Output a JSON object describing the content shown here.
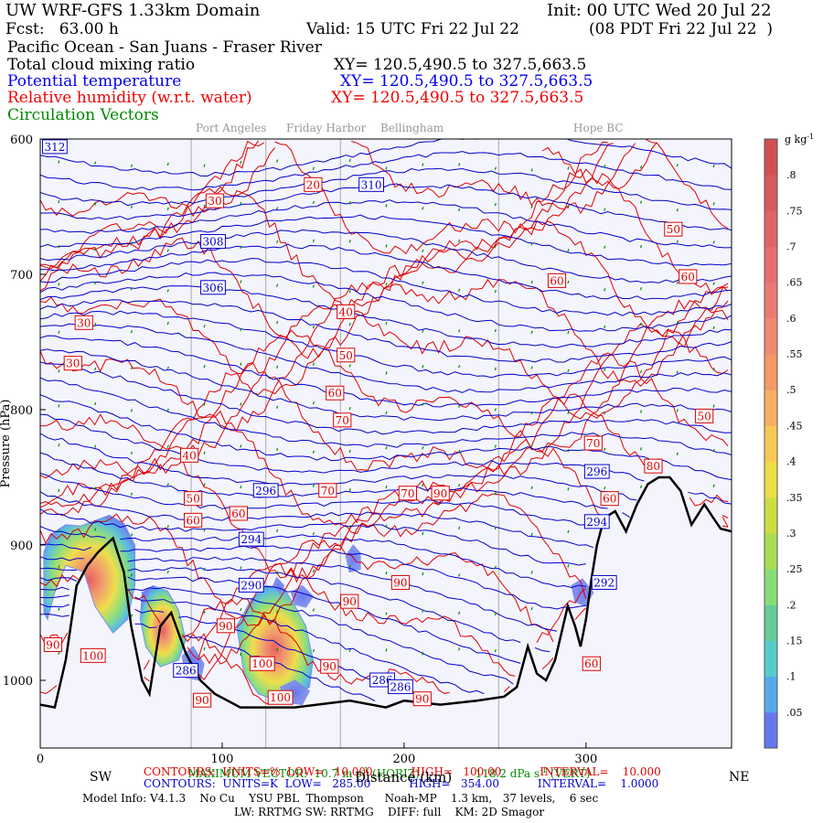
{
  "header": {
    "model": "UW WRF-GFS 1.33km Domain",
    "init": "Init: 00 UTC Wed 20 Jul 22",
    "fcst": "Fcst:   63.00 h",
    "valid": "Valid: 15 UTC Fri 22 Jul 22",
    "valid_local": "(08 PDT Fri 22 Jul 22  )",
    "region": "Pacific Ocean - San Juans - Fraser River",
    "line_cloud": "Total cloud mixing ratio",
    "line_cloud_xy": "XY= 120.5,490.5 to 327.5,663.5",
    "line_theta": "Potential temperature",
    "line_theta_xy": "XY= 120.5,490.5 to 327.5,663.5",
    "line_rh": "Relative humidity (w.r.t. water)",
    "line_rh_xy": "XY= 120.5,490.5 to 327.5,663.5",
    "line_vec": "Circulation Vectors"
  },
  "cities": [
    "Port Angeles",
    "Friday Harbor",
    "Bellingham",
    "Hope BC"
  ],
  "footer": {
    "max_vector_a": "MAXIMUM VECTOR:  10.7 m s",
    "max_vector_b": " (HORIZ)",
    "max_vector_c": "118.2 dPa s",
    "max_vector_d": " (VERT)",
    "contours_red": "CONTOURS:  UNITS=%  LOW=   10.000           HIGH=   100.00           INTERVAL=    10.000",
    "contours_blue": "CONTOURS:  UNITS=K  LOW=   285.00           HIGH=   354.00           INTERVAL=    1.0000",
    "model_info": "Model Info: V4.1.3    No Cu    YSU PBL  Thompson      Noah-MP    1.3 km,   37 levels,    6 sec",
    "physics": "LW: RRTMG SW: RRTMG    DIFF: full    KM: 2D Smagor",
    "sw": "SW",
    "ne": "NE",
    "distance_label": "Distance (km)"
  },
  "colors": {
    "theta": "#0000cc",
    "rh": "#dd0000",
    "terrain": "#000000",
    "vectors": "#008800",
    "background": "#f4f4fc"
  },
  "chart_data": {
    "type": "cross-section",
    "xlabel": "Distance (km)",
    "ylabel": "Pressure (hPa)",
    "xlim": [
      0,
      380
    ],
    "ylim": [
      1050,
      600
    ],
    "x_ticks": [
      0,
      100,
      200,
      300
    ],
    "y_ticks": [
      600,
      700,
      800,
      900,
      1000
    ],
    "y_tick_labels": [
      "600",
      "700",
      "800",
      "900",
      "1000"
    ],
    "colorbar": {
      "unit": "g kg",
      "ticks": [
        0.05,
        0.1,
        0.15,
        0.2,
        0.25,
        0.3,
        0.35,
        0.4,
        0.45,
        0.5,
        0.55,
        0.6,
        0.65,
        0.7,
        0.75,
        0.8
      ],
      "tick_labels": [
        ".05",
        ".1",
        ".15",
        ".2",
        ".25",
        ".3",
        ".35",
        ".4",
        ".45",
        ".5",
        ".55",
        ".6",
        ".65",
        ".7",
        ".75",
        ".8"
      ],
      "colors": [
        "#6677ee",
        "#55aaee",
        "#55cccc",
        "#66cc99",
        "#88dd77",
        "#aadd55",
        "#ccdd44",
        "#eedd44",
        "#f6c855",
        "#f6b060",
        "#f39a66",
        "#f08a70",
        "#ec7a74",
        "#e66e70",
        "#e06464",
        "#d85a5a",
        "#d05050"
      ]
    },
    "city_locations_km": [
      83,
      124,
      165,
      252
    ],
    "terrain": [
      [
        0,
        1018
      ],
      [
        8,
        1020
      ],
      [
        14,
        985
      ],
      [
        20,
        930
      ],
      [
        26,
        915
      ],
      [
        32,
        905
      ],
      [
        40,
        895
      ],
      [
        46,
        920
      ],
      [
        50,
        960
      ],
      [
        56,
        1000
      ],
      [
        60,
        1010
      ],
      [
        66,
        960
      ],
      [
        72,
        950
      ],
      [
        80,
        980
      ],
      [
        88,
        1000
      ],
      [
        96,
        1010
      ],
      [
        110,
        1020
      ],
      [
        140,
        1020
      ],
      [
        170,
        1015
      ],
      [
        190,
        1020
      ],
      [
        200,
        1015
      ],
      [
        220,
        1018
      ],
      [
        240,
        1015
      ],
      [
        255,
        1012
      ],
      [
        262,
        1005
      ],
      [
        268,
        975
      ],
      [
        273,
        995
      ],
      [
        278,
        1000
      ],
      [
        283,
        985
      ],
      [
        287,
        962
      ],
      [
        290,
        945
      ],
      [
        294,
        960
      ],
      [
        297,
        975
      ],
      [
        300,
        955
      ],
      [
        303,
        925
      ],
      [
        306,
        900
      ],
      [
        310,
        880
      ],
      [
        316,
        875
      ],
      [
        322,
        890
      ],
      [
        328,
        870
      ],
      [
        334,
        855
      ],
      [
        340,
        850
      ],
      [
        346,
        850
      ],
      [
        352,
        860
      ],
      [
        358,
        885
      ],
      [
        365,
        870
      ],
      [
        370,
        880
      ],
      [
        374,
        888
      ],
      [
        380,
        890
      ]
    ],
    "theta_labels": [
      {
        "text": "312",
        "x": 8,
        "p": 606
      },
      {
        "text": "310",
        "x": 182,
        "p": 634
      },
      {
        "text": "308",
        "x": 95,
        "p": 676
      },
      {
        "text": "306",
        "x": 95,
        "p": 710
      },
      {
        "text": "296",
        "x": 124,
        "p": 860
      },
      {
        "text": "294",
        "x": 116,
        "p": 896
      },
      {
        "text": "290",
        "x": 116,
        "p": 930
      },
      {
        "text": "286",
        "x": 80,
        "p": 993
      },
      {
        "text": "286",
        "x": 188,
        "p": 1000
      },
      {
        "text": "286",
        "x": 198,
        "p": 1005
      },
      {
        "text": "296",
        "x": 306,
        "p": 846
      },
      {
        "text": "294",
        "x": 306,
        "p": 883
      },
      {
        "text": "292",
        "x": 310,
        "p": 928
      }
    ],
    "rh_labels": [
      {
        "text": "30",
        "x": 96,
        "p": 646
      },
      {
        "text": "20",
        "x": 150,
        "p": 634
      },
      {
        "text": "30",
        "x": 24,
        "p": 736
      },
      {
        "text": "30",
        "x": 18,
        "p": 766
      },
      {
        "text": "40",
        "x": 168,
        "p": 728
      },
      {
        "text": "50",
        "x": 168,
        "p": 760
      },
      {
        "text": "60",
        "x": 162,
        "p": 788
      },
      {
        "text": "70",
        "x": 166,
        "p": 808
      },
      {
        "text": "40",
        "x": 82,
        "p": 834
      },
      {
        "text": "50",
        "x": 84,
        "p": 866
      },
      {
        "text": "60",
        "x": 84,
        "p": 882
      },
      {
        "text": "60",
        "x": 109,
        "p": 877
      },
      {
        "text": "70",
        "x": 158,
        "p": 860
      },
      {
        "text": "70",
        "x": 202,
        "p": 862
      },
      {
        "text": "90",
        "x": 220,
        "p": 862
      },
      {
        "text": "90",
        "x": 198,
        "p": 928
      },
      {
        "text": "90",
        "x": 170,
        "p": 942
      },
      {
        "text": "90",
        "x": 102,
        "p": 960
      },
      {
        "text": "90",
        "x": 7,
        "p": 974
      },
      {
        "text": "100",
        "x": 29,
        "p": 982
      },
      {
        "text": "100",
        "x": 122,
        "p": 988
      },
      {
        "text": "100",
        "x": 132,
        "p": 1013
      },
      {
        "text": "90",
        "x": 89,
        "p": 1015
      },
      {
        "text": "90",
        "x": 159,
        "p": 990
      },
      {
        "text": "90",
        "x": 210,
        "p": 1014
      },
      {
        "text": "70",
        "x": 304,
        "p": 825
      },
      {
        "text": "80",
        "x": 337,
        "p": 842
      },
      {
        "text": "60",
        "x": 313,
        "p": 866
      },
      {
        "text": "60",
        "x": 303,
        "p": 988
      },
      {
        "text": "50",
        "x": 348,
        "p": 667
      },
      {
        "text": "60",
        "x": 284,
        "p": 705
      },
      {
        "text": "60",
        "x": 356,
        "p": 702
      },
      {
        "text": "50",
        "x": 365,
        "p": 805
      }
    ]
  }
}
